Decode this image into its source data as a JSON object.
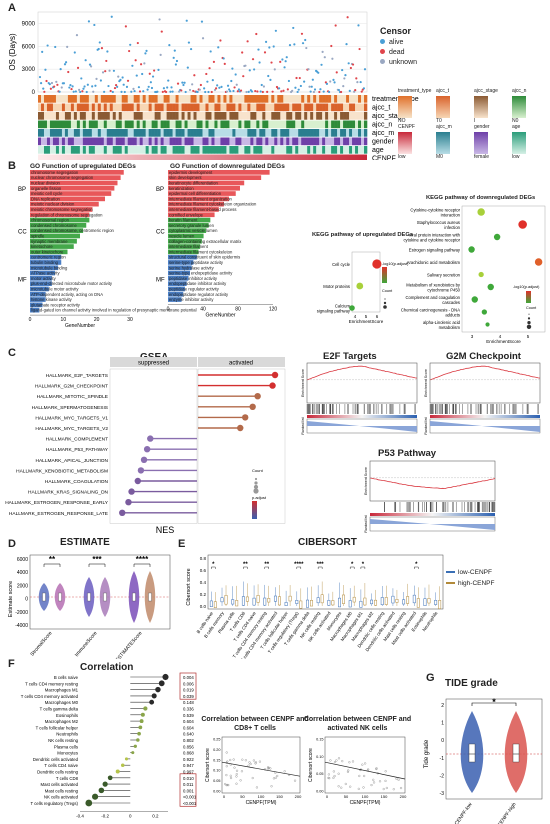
{
  "panels": {
    "A": {
      "letter": "A",
      "ylabel": "OS (Days)",
      "yticks": [
        "0",
        "3000",
        "6000",
        "9000"
      ],
      "censor_title": "Censor",
      "censor_labels": [
        "alive",
        "dead",
        "unknown"
      ],
      "censor_colors": [
        "#4a9fd6",
        "#e0454b",
        "#9aa8c2"
      ],
      "tracks": [
        "treatment_type",
        "ajcc_t",
        "ajcc_stage",
        "ajcc_n",
        "ajcc_m",
        "gender",
        "age",
        "CENPF"
      ],
      "legend_top": [
        {
          "title": "treatment_type",
          "low": "NO",
          "high": "YES",
          "c1": "#f6e3c8",
          "c2": "#e0702a"
        },
        {
          "title": "ajcc_t",
          "low": "T0",
          "high": "T4",
          "c1": "#f7d6b4",
          "c2": "#d9622b"
        },
        {
          "title": "ajcc_stage",
          "low": "I",
          "high": "IV",
          "c1": "#f8e3cc",
          "c2": "#8a5a33"
        },
        {
          "title": "ajcc_n",
          "low": "N0",
          "high": "N3",
          "c1": "#d8f0cf",
          "c2": "#2e8b3a"
        }
      ],
      "legend_bot": [
        {
          "title": "CENPF",
          "low": "low",
          "high": "high",
          "c1": "#fce3e3",
          "c2": "#c8283a"
        },
        {
          "title": "ajcc_m",
          "low": "M0",
          "high": "M1",
          "c1": "#b8dde6",
          "c2": "#2a7e8f"
        },
        {
          "title": "gender",
          "low": "female",
          "high": "male",
          "c1": "#c9b8e6",
          "c2": "#6e3fa8"
        },
        {
          "title": "age",
          "low": "low",
          "high": "high",
          "c1": "#d5f0e5",
          "c2": "#2a9d7a"
        }
      ]
    },
    "B": {
      "up_title": "GO Function of upregulated DEGs",
      "down_title": "GO Function of downregulated DEGs",
      "kegg_up_title": "KEGG  pathway of upregulated DEGs",
      "kegg_down_title": "KEGG  pathway of downregulated DEGs",
      "xlabel": "GeneNumber",
      "kegg_xlabel": "EnrichmentScore",
      "group_labels": [
        "BP",
        "CC",
        "MF"
      ],
      "up_terms": [
        "chromosome segregation",
        "nuclear chromosome segregation",
        "nuclear division",
        "organelle fission",
        "meiotic cell cycle",
        "DNA replication",
        "meiotic nuclear division",
        "meiotic chromosome segregation",
        "regulation of chromosome segregation",
        "chromosomal region",
        "condensed chromosome",
        "condensed chromosome, centromeric region",
        "spindle",
        "synaptic membrane",
        "kinetochore",
        "outer kinetochore",
        "centromeric region",
        "tubulin binding",
        "microtubule binding",
        "ATPase activity",
        "motor activity",
        "plus-end-directed microtubule motor activity",
        "microtubule motor activity",
        "ATP-dependent activity, acting on DNA",
        "histone kinase activity",
        "glutamate receptor activity",
        "ligand-gated ion channel activity involved in regulation of presynaptic membrane potential"
      ],
      "up_values": [
        30,
        29,
        28,
        27,
        26,
        24,
        22,
        20,
        19,
        19,
        18,
        17,
        16,
        15,
        14,
        12,
        10,
        10,
        9,
        8,
        7,
        7,
        6,
        5,
        5,
        4,
        3
      ],
      "up_axis": [
        "0",
        "10",
        "20",
        "30"
      ],
      "down_terms": [
        "epidermis development",
        "skin development",
        "keratinocyte differentiation",
        "keratinization",
        "epidermal cell differentiation",
        "intermediate filament organization",
        "intermediate filament cytoskeleton organization",
        "intermediate filament-based process",
        "cornified envelope",
        "keratin filament",
        "secretory granule lumen",
        "cytoplasmic vesicle lumen",
        "vesicle lumen",
        "collagen-containing extracellular matrix",
        "intermediate filament",
        "intermediate filament cytoskeleton",
        "structural constituent of skin epidermis",
        "serine-type peptidase activity",
        "serine hydrolase activity",
        "serine-type endopeptidase activity",
        "peptidase inhibitor activity",
        "endopeptidase inhibitor activity",
        "peptidase regulator activity",
        "endopeptidase regulator activity",
        "enzyme inhibitor activity"
      ],
      "down_values": [
        120,
        110,
        90,
        85,
        80,
        72,
        66,
        60,
        55,
        50,
        48,
        45,
        42,
        40,
        38,
        36,
        34,
        30,
        28,
        26,
        24,
        22,
        20,
        18,
        16
      ],
      "down_axis": [
        "0",
        "40",
        "80",
        "120"
      ],
      "kegg_up": [
        {
          "name": "Cell cycle",
          "score": 6.2,
          "size": 6,
          "color": "#e0302a"
        },
        {
          "name": "Motor proteins",
          "score": 4.0,
          "size": 4,
          "color": "#a8d03a"
        },
        {
          "name": "Calcium signaling pathway",
          "score": 3.0,
          "size": 3,
          "color": "#3fa83a"
        }
      ],
      "kegg_up_axis": [
        "4",
        "5",
        "6"
      ],
      "kegg_down": [
        {
          "name": "Cytokine-cytokine receptor interaction",
          "score": 3.3,
          "size": 5,
          "color": "#a8d03a"
        },
        {
          "name": "Staphylococcus aureus infection",
          "score": 4.6,
          "size": 6,
          "color": "#e0302a"
        },
        {
          "name": "Viral protein interaction with cytokine and cytokine receptor",
          "score": 3.8,
          "size": 4,
          "color": "#3fa83a"
        },
        {
          "name": "Estrogen signaling pathway",
          "score": 3.0,
          "size": 4,
          "color": "#3fa83a"
        },
        {
          "name": "Arachidonic acid metabolism",
          "score": 5.1,
          "size": 5,
          "color": "#e0602a"
        },
        {
          "name": "Salivary secretion",
          "score": 3.3,
          "size": 3,
          "color": "#a8d03a"
        },
        {
          "name": "Metabolism of xenobiotics by cytochrome P450",
          "score": 3.6,
          "size": 4,
          "color": "#3fa83a"
        },
        {
          "name": "Complement and coagulation cascades",
          "score": 3.1,
          "size": 4,
          "color": "#3fa83a"
        },
        {
          "name": "Chemical carcinogenesis - DNA adducts",
          "score": 3.4,
          "size": 3,
          "color": "#3fa83a"
        },
        {
          "name": "alpha-Linolenic acid metabolism",
          "score": 3.5,
          "size": 2,
          "color": "#3fa83a"
        }
      ],
      "kegg_down_axis": [
        "3",
        "4",
        "5"
      ],
      "legend_padj": "-log10(p.adjust)",
      "legend_count": "Count"
    },
    "C": {
      "title": "GSEA",
      "facet_left": "suppressed",
      "facet_right": "activated",
      "xlabel": "NES",
      "pathways": [
        {
          "name": "HALLMARK_E2F_TARGETS",
          "nes": 3.1
        },
        {
          "name": "HALLMARK_G2M_CHECKPOINT",
          "nes": 3.0
        },
        {
          "name": "HALLMARK_MITOTIC_SPINDLE",
          "nes": 2.4
        },
        {
          "name": "HALLMARK_SPERMATOGENESIS",
          "nes": 2.2
        },
        {
          "name": "HALLMARK_MYC_TARGETS_V1",
          "nes": 1.9
        },
        {
          "name": "HALLMARK_MYC_TARGETS_V2",
          "nes": 1.7
        },
        {
          "name": "HALLMARK_COMPLEMENT",
          "nes": -1.5
        },
        {
          "name": "HALLMARK_P53_PATHWAY",
          "nes": -1.6
        },
        {
          "name": "HALLMARK_APICAL_JUNCTION",
          "nes": -1.7
        },
        {
          "name": "HALLMARK_XENOBIOTIC_METABOLISM",
          "nes": -1.8
        },
        {
          "name": "HALLMARK_COAGULATION",
          "nes": -1.9
        },
        {
          "name": "HALLMARK_KRAS_SIGNALING_DN",
          "nes": -2.1
        },
        {
          "name": "HALLMARK_ESTROGEN_RESPONSE_EARLY",
          "nes": -2.2
        },
        {
          "name": "HALLMARK_ESTROGEN_RESPONSE_LATE",
          "nes": -2.4
        }
      ],
      "legend_count": "Count",
      "legend_padj": "p.adjust",
      "e2f_title": "E2F Targets",
      "g2m_title": "G2M Checkpoint",
      "p53_title": "P53 Pathway",
      "es_label": "Enrichment Score",
      "rl_label": "Ranked list"
    },
    "D": {
      "title": "ESTIMATE",
      "ylabel": "Estimate score",
      "groups": [
        "StromalScore",
        "ImmuneScore",
        "ESTIMATEScore"
      ],
      "stars": [
        "**",
        "***",
        "****"
      ],
      "yticks": [
        "6000",
        "4000",
        "2000",
        "0",
        "-2000",
        "-4000"
      ]
    },
    "E": {
      "title": "CIBERSORT",
      "ylabel": "Cibersort score",
      "legend": [
        "low-CENPF",
        "high-CENPF"
      ],
      "colors": [
        "#3a6fb5",
        "#b28a3a"
      ],
      "cells": [
        "B cells naive",
        "B cells memory",
        "Plasma cells",
        "T cells CD8",
        "T cells CD4 naive",
        "T cells CD4 memory resting",
        "T cells CD4 memory activated",
        "T cells follicular helper",
        "T cells regulatory (Tregs)",
        "T cells gamma delta",
        "NK cells resting",
        "NK cells activated",
        "Monocytes",
        "Macrophages M0",
        "Macrophages M1",
        "Macrophages M2",
        "Dendritic cells resting",
        "Dendritic cells activated",
        "Mast cells resting",
        "Mast cells activated",
        "Eosinophils",
        "Neutrophils"
      ],
      "stars": [
        "*",
        "",
        "",
        "**",
        "",
        "**",
        "",
        "",
        "****",
        "",
        "***",
        "",
        "",
        "*",
        "*",
        "",
        "",
        "",
        "",
        "*",
        "",
        ""
      ],
      "yticks": [
        "0.8",
        "0.6",
        "0.4",
        "0.2",
        "0.0"
      ]
    },
    "F": {
      "title": "Correlation",
      "cells": [
        "B cells naive",
        "T cells CD4 memory resting",
        "Macrophages M1",
        "T cells CD4 memory activated",
        "Macrophages M0",
        "T cells gamma delta",
        "Eosinophils",
        "Macrophages M2",
        "T cells follicular helper",
        "Neutrophils",
        "NK cells resting",
        "Plasma cells",
        "Monocytes",
        "Dendritic cells activated",
        "T cells CD4 naive",
        "Dendritic cells resting",
        "T cells CD8",
        "Mast cells activated",
        "Mast cells resting",
        "NK cells activated",
        "T cells regulatory (Tregs)"
      ],
      "r": [
        0.28,
        0.25,
        0.22,
        0.19,
        0.17,
        0.12,
        0.1,
        0.09,
        0.08,
        0.07,
        0.06,
        0.04,
        0.02,
        -0.03,
        -0.06,
        -0.1,
        -0.16,
        -0.2,
        -0.23,
        -0.28,
        -0.33
      ],
      "pvals": [
        "0.004",
        "0.006",
        "0.019",
        "0.039",
        "0.148",
        "0.336",
        "0.539",
        "0.604",
        "0.604",
        "0.640",
        "0.802",
        "0.856",
        "0.868",
        "0.922",
        "0.947",
        "0.997",
        "0.010",
        "0.011",
        "0.001",
        "<0.001",
        "<0.001"
      ],
      "xticks": [
        "-0.4",
        "-0.2",
        "0",
        "0.2"
      ],
      "sc1_title": "Correlation between CENPF and CD8+ T cells",
      "sc2_title": "Correlation between CENPF and activated NK cells",
      "sc_xlabel": "CENPF(TPM)",
      "sc_ylabel": "Cibersort score",
      "sc_xticks": [
        "0",
        "50",
        "100",
        "150",
        "200"
      ],
      "sc1_yticks": [
        "0.25",
        "0.20",
        "0.15",
        "0.10",
        "0.05",
        "0.00"
      ],
      "sc2_yticks": [
        "0.15",
        "0.10",
        "0.05",
        "0.00"
      ]
    },
    "G": {
      "title": "TIDE grade",
      "ylabel": "Tide grade",
      "groups": [
        "CENPF-low",
        "CENPF-high"
      ],
      "star": "*",
      "yticks": [
        "2",
        "1",
        "0",
        "-1",
        "-2",
        "-3"
      ]
    }
  },
  "panel_letters": [
    "A",
    "B",
    "C",
    "D",
    "E",
    "F",
    "G"
  ]
}
